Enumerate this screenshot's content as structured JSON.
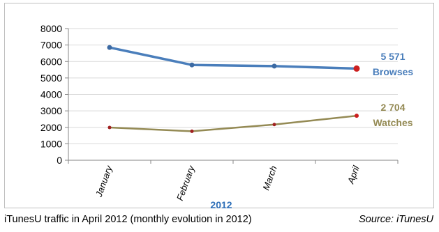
{
  "chart_data": {
    "type": "line",
    "categories": [
      "January",
      "February",
      "March",
      "April"
    ],
    "xlabel": "2012",
    "ylim": [
      0,
      8000
    ],
    "yticks": [
      0,
      1000,
      2000,
      3000,
      4000,
      5000,
      6000,
      7000,
      8000
    ],
    "grid": "horizontal",
    "series": [
      {
        "name": "Browses",
        "values": [
          6850,
          5790,
          5720,
          5571
        ],
        "color": "#4a7ebb",
        "end_marker_color": "#cc1f1f",
        "end_label": "5 571"
      },
      {
        "name": "Watches",
        "values": [
          1990,
          1760,
          2170,
          2704
        ],
        "color": "#948a54",
        "end_marker_color": "#cc1f1f",
        "end_label": "2 704"
      }
    ]
  },
  "caption": {
    "text": "iTunesU traffic in April 2012 (monthly evolution in 2012)",
    "source": "Source: iTunesU"
  }
}
